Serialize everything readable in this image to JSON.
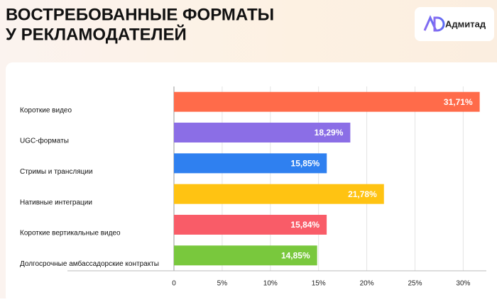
{
  "chart_data": {
    "type": "bar",
    "orientation": "horizontal",
    "title_lines": [
      "ВОСТРЕБОВАННЫЕ ФОРМАТЫ",
      "У РЕКЛАМОДАТЕЛЕЙ"
    ],
    "brand": "Адмитад",
    "categories": [
      "Короткие видео",
      "UGC-форматы",
      "Стримы и трансляции",
      "Нативные интеграции",
      "Короткие вертикальные видео",
      "Долгосрочные амбассадорские контракты"
    ],
    "values": [
      31.71,
      18.29,
      15.85,
      21.78,
      15.84,
      14.85
    ],
    "value_labels": [
      "31,71%",
      "18,29%",
      "15,85%",
      "21,78%",
      "15,84%",
      "14,85%"
    ],
    "colors": [
      "#ff6b4a",
      "#8b6ee6",
      "#2f80f0",
      "#ffc312",
      "#f95c68",
      "#79c83d"
    ],
    "xlim": [
      0,
      32.4
    ],
    "xticks": [
      0,
      {
        "value": 5,
        "label": "5%"
      },
      {
        "value": 10,
        "label": "10%"
      },
      {
        "value": 15,
        "label": "15%"
      },
      {
        "value": 20,
        "label": "20%"
      },
      {
        "value": 25,
        "label": "25%"
      },
      {
        "value": 30,
        "label": "30%"
      }
    ],
    "grid": true
  }
}
